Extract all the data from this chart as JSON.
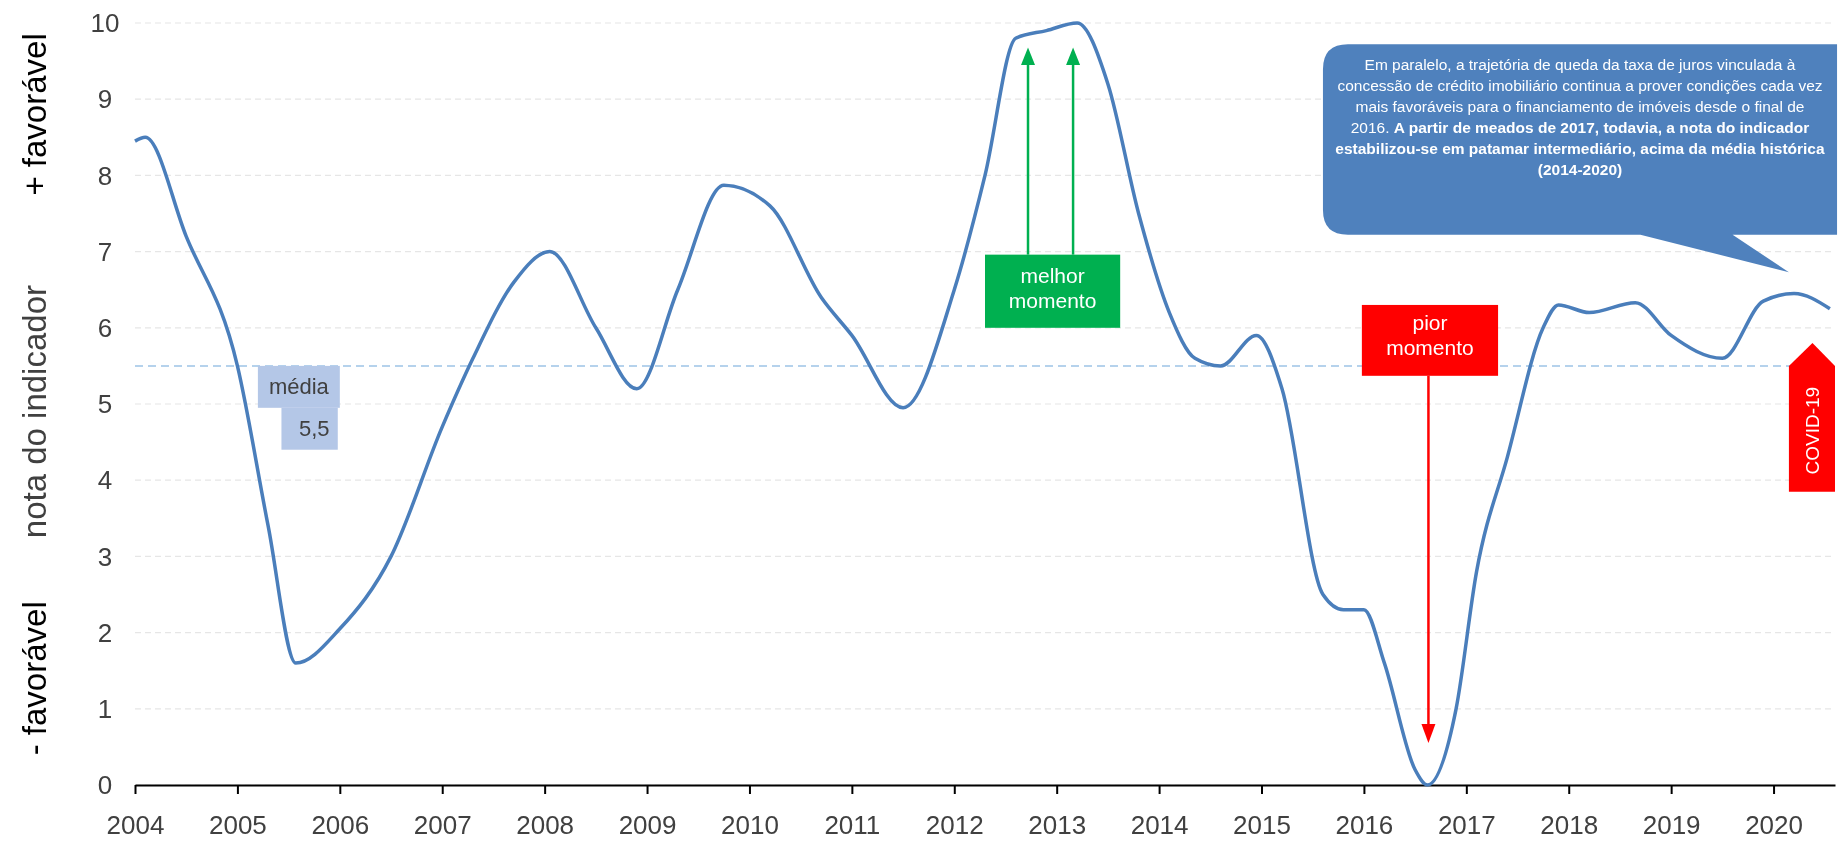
{
  "chart_data": {
    "type": "line",
    "ylabel": "nota do indicador",
    "x": [
      2004,
      2004.1,
      2004.5,
      2005,
      2005.3,
      2005.57,
      2006,
      2006.5,
      2007,
      2007.3,
      2007.7,
      2008.05,
      2008.5,
      2008.9,
      2009.3,
      2009.75,
      2010.2,
      2010.7,
      2011,
      2011.5,
      2012,
      2012.3,
      2012.6,
      2012.9,
      2013.2,
      2013.5,
      2013.8,
      2014.1,
      2014.35,
      2014.6,
      2014.95,
      2015.2,
      2015.6,
      2015.8,
      2016,
      2016.2,
      2016.5,
      2016.62,
      2016.9,
      2017.1,
      2017.4,
      2017.75,
      2017.9,
      2018.2,
      2018.65,
      2019,
      2019.5,
      2019.9,
      2020.2,
      2020.55
    ],
    "series": [
      {
        "color": "#4a7ebb",
        "values": [
          8.45,
          8.5,
          7.2,
          5.5,
          3.4,
          1.6,
          2.05,
          3.0,
          4.7,
          5.6,
          6.6,
          7.0,
          6.0,
          5.2,
          6.5,
          7.87,
          7.6,
          6.4,
          5.9,
          4.95,
          6.5,
          8.0,
          9.8,
          9.9,
          10.0,
          9.2,
          7.5,
          6.2,
          5.6,
          5.5,
          5.9,
          5.2,
          2.5,
          2.3,
          2.3,
          1.6,
          0.2,
          0,
          1.0,
          2.8,
          4.3,
          6.0,
          6.3,
          6.2,
          6.33,
          5.9,
          5.6,
          6.35,
          6.45,
          6.25
        ]
      }
    ],
    "xlim": [
      2004,
      2020.6
    ],
    "xticks": [
      2004,
      2005,
      2006,
      2007,
      2008,
      2009,
      2010,
      2011,
      2012,
      2013,
      2014,
      2015,
      2016,
      2017,
      2018,
      2019,
      2020
    ],
    "ylim": [
      0,
      10
    ],
    "yticks": [
      0,
      1,
      2,
      3,
      4,
      5,
      6,
      7,
      8,
      9,
      10
    ],
    "grid": "y",
    "line_style": "solid",
    "marker": "none",
    "ref_lines": [
      {
        "axis": "y",
        "value": 5.5,
        "label": "média 5,5",
        "color": "#9dc3e6",
        "line_style": "dashed"
      }
    ],
    "annotations": [
      "+ favorável",
      "- favorável",
      "melhor momento",
      "pior momento",
      "COVID-19",
      "Em paralelo, a trajetória de queda da taxa de juros vinculada à concessão de crédito imobiliário continua a prover condições cada vez mais favoráveis para o financiamento de imóveis desde o final de 2016.",
      "A partir de meados de 2017, todavia, a nota do indicador estabilizou-se em patamar intermediário, acima da média histórica (2014-2020)"
    ]
  }
}
